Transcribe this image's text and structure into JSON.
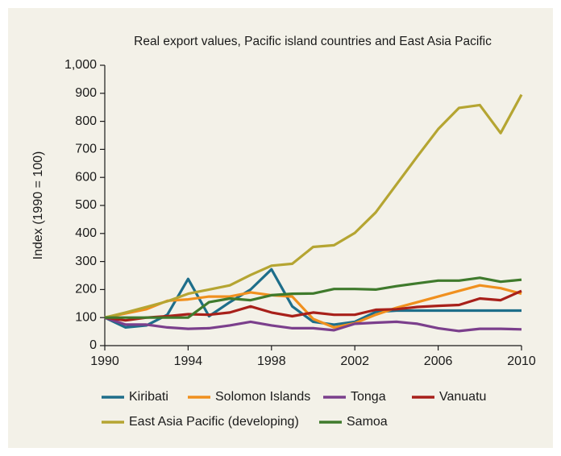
{
  "chart_data": {
    "type": "line",
    "title": "Real export values, Pacific island countries and East Asia Pacific",
    "y_label": "Index (1990 = 100)",
    "x": [
      1990,
      1991,
      1992,
      1993,
      1994,
      1995,
      1996,
      1997,
      1998,
      1999,
      2000,
      2001,
      2002,
      2003,
      2004,
      2005,
      2006,
      2007,
      2008,
      2009,
      2010
    ],
    "series": [
      {
        "name": "Kiribati",
        "color": "#1e6e8a",
        "values": [
          100,
          65,
          72,
          110,
          238,
          105,
          155,
          200,
          272,
          140,
          85,
          75,
          85,
          120,
          125,
          125,
          125,
          125,
          125,
          125,
          125
        ]
      },
      {
        "name": "Solomon Islands",
        "color": "#f0901e",
        "values": [
          100,
          115,
          130,
          160,
          165,
          175,
          175,
          190,
          180,
          175,
          95,
          65,
          80,
          110,
          135,
          155,
          175,
          195,
          215,
          205,
          185
        ]
      },
      {
        "name": "Tonga",
        "color": "#7b3f8c",
        "values": [
          100,
          75,
          75,
          65,
          60,
          62,
          72,
          85,
          72,
          62,
          62,
          55,
          78,
          82,
          85,
          78,
          62,
          52,
          60,
          60,
          58
        ]
      },
      {
        "name": "Vanuatu",
        "color": "#a8201a",
        "values": [
          100,
          90,
          100,
          105,
          112,
          110,
          118,
          140,
          118,
          105,
          118,
          110,
          110,
          128,
          130,
          138,
          142,
          145,
          168,
          162,
          195
        ]
      },
      {
        "name": "East Asia Pacific (developing)",
        "color": "#b5a532",
        "values": [
          100,
          118,
          138,
          158,
          185,
          200,
          215,
          252,
          285,
          292,
          352,
          358,
          402,
          475,
          575,
          675,
          772,
          848,
          858,
          758,
          895
        ]
      },
      {
        "name": "Samoa",
        "color": "#3f7a2c",
        "values": [
          100,
          100,
          100,
          100,
          100,
          155,
          168,
          162,
          180,
          185,
          186,
          202,
          202,
          200,
          212,
          222,
          232,
          232,
          242,
          228,
          235
        ]
      }
    ],
    "xlim": [
      1990,
      2010
    ],
    "xticks": [
      1990,
      1994,
      1998,
      2002,
      2006,
      2010
    ],
    "ylim": [
      0,
      1000
    ],
    "yticks": [
      0,
      100,
      200,
      300,
      400,
      500,
      600,
      700,
      800,
      900,
      {
        "value": 1000,
        "label": "1,000"
      }
    ],
    "grid": false
  }
}
